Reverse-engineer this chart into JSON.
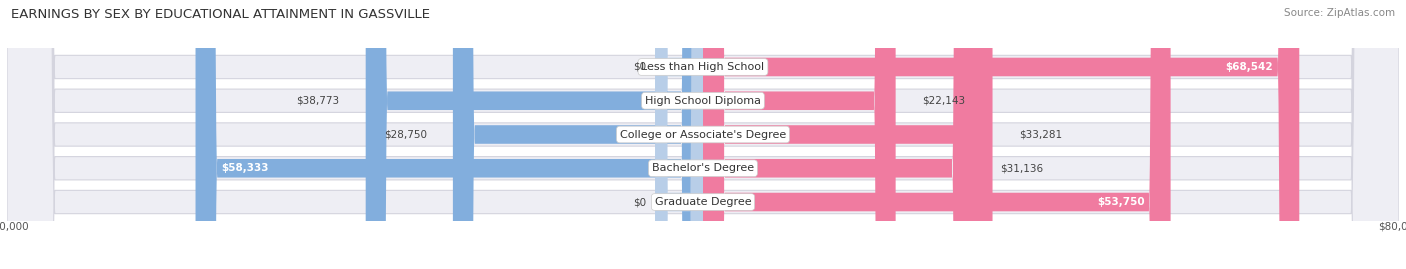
{
  "title": "EARNINGS BY SEX BY EDUCATIONAL ATTAINMENT IN GASSVILLE",
  "source": "Source: ZipAtlas.com",
  "categories": [
    "Less than High School",
    "High School Diploma",
    "College or Associate's Degree",
    "Bachelor's Degree",
    "Graduate Degree"
  ],
  "male_values": [
    0,
    38773,
    28750,
    58333,
    0
  ],
  "female_values": [
    68542,
    22143,
    33281,
    31136,
    53750
  ],
  "male_color": "#82AEDD",
  "female_color": "#F07BA0",
  "male_zero_color": "#B8CEE8",
  "female_zero_color": "#F5B8CC",
  "row_bg_color": "#EEEEF4",
  "row_border_color": "#D4D4DE",
  "axis_max": 80000,
  "title_fontsize": 9.5,
  "source_fontsize": 7.5,
  "label_fontsize": 7.5,
  "category_fontsize": 8,
  "tick_fontsize": 7.5,
  "figsize": [
    14.06,
    2.69
  ],
  "dpi": 100
}
